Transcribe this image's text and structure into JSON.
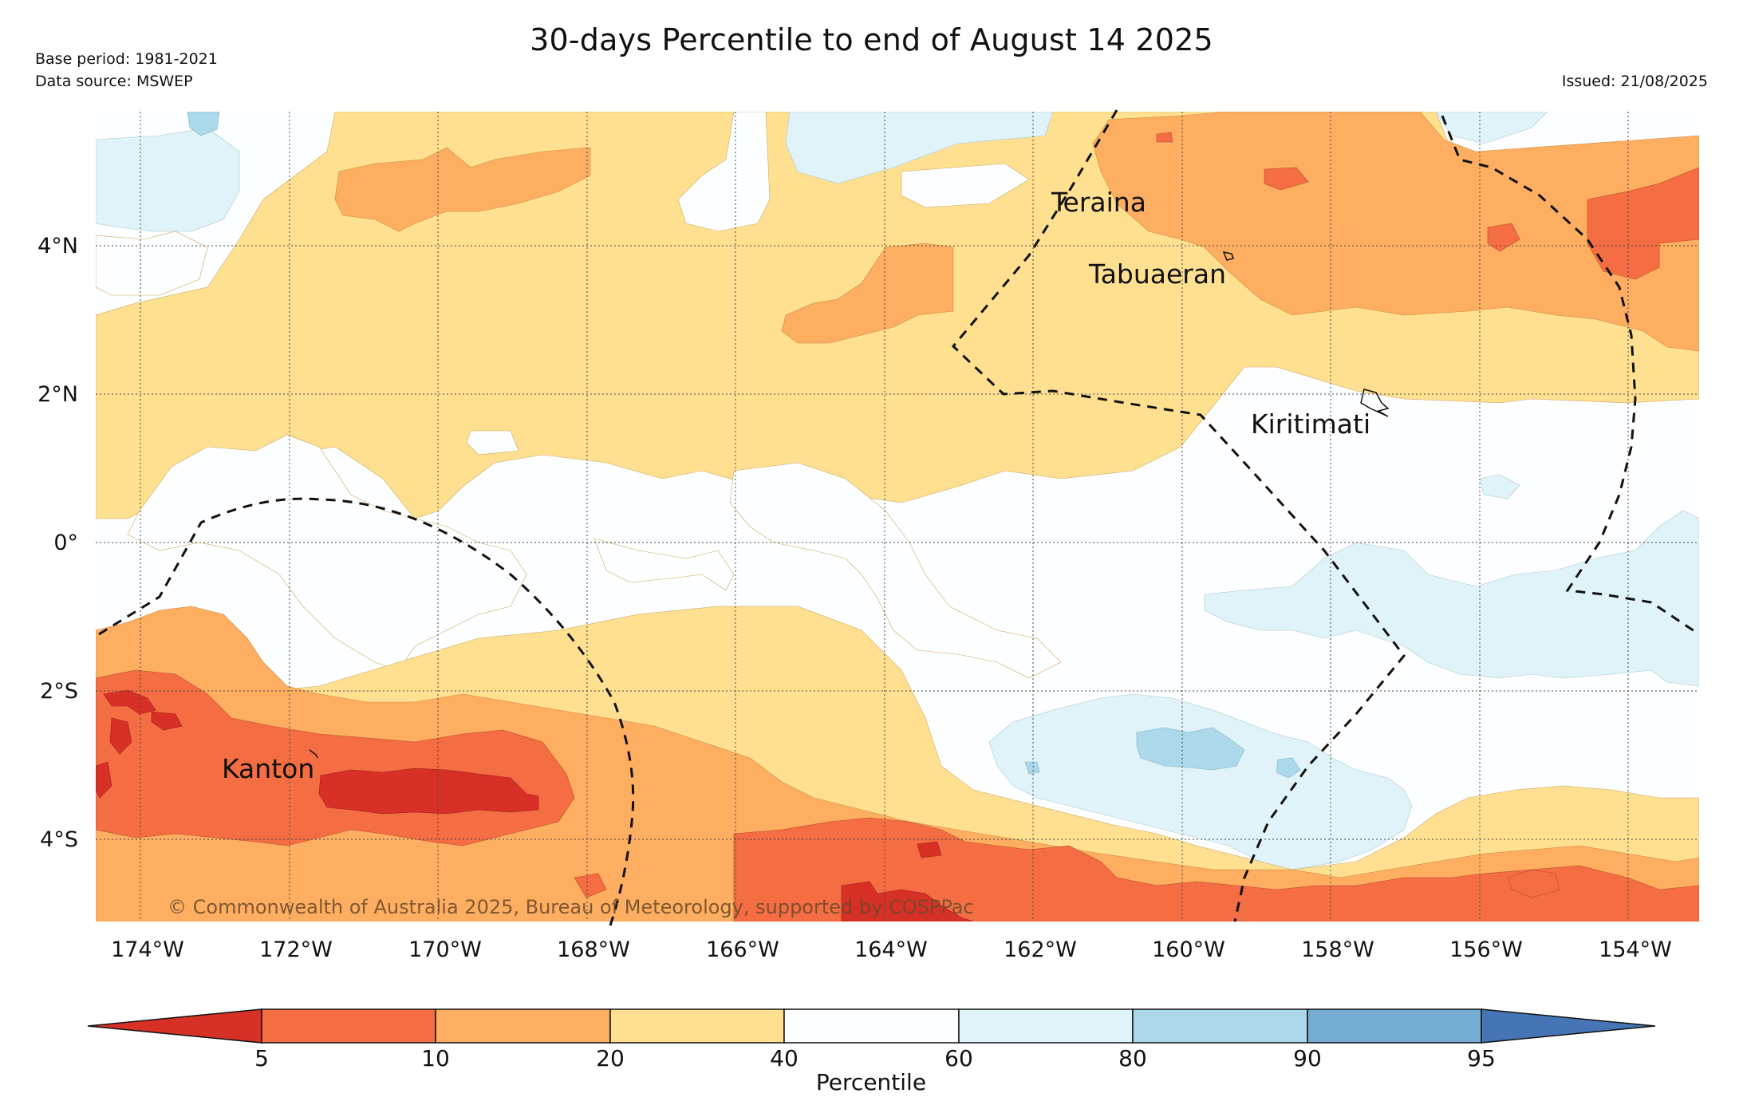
{
  "header": {
    "title": "30-days Percentile to end of August 14 2025",
    "base_period": "Base period: 1981-2021",
    "data_source": "Data source: MSWEP",
    "issued": "Issued: 21/08/2025"
  },
  "map": {
    "lat_labels": [
      "4°N",
      "2°N",
      "0°",
      "2°S",
      "4°S"
    ],
    "lon_labels": [
      "174°W",
      "172°W",
      "170°W",
      "168°W",
      "166°W",
      "164°W",
      "162°W",
      "160°W",
      "158°W",
      "156°W",
      "154°W"
    ],
    "places": {
      "teraina": "Teraina",
      "tabuaeran": "Tabuaeran",
      "kiritimati": "Kiritimati",
      "kanton": "Kanton"
    },
    "copyright": "© Commonwealth of Australia 2025, Bureau of Meteorology, supported by COSPPac"
  },
  "colorbar": {
    "ticks": [
      "5",
      "10",
      "20",
      "40",
      "60",
      "80",
      "90",
      "95"
    ],
    "label": "Percentile",
    "colors": {
      "lt5": "#d73027",
      "c5_10": "#f46d43",
      "c10_20": "#fdae61",
      "c20_40": "#fee090",
      "c40_60": "#fdfeff",
      "c60_80": "#e0f3f8",
      "c80_90": "#abd9e9",
      "c90_95": "#74add1",
      "gt95": "#4575b4"
    }
  }
}
